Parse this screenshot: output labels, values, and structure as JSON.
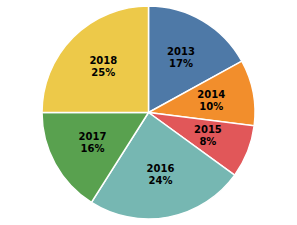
{
  "chart_data": {
    "type": "pie",
    "categories": [
      "2013",
      "2014",
      "2015",
      "2016",
      "2017",
      "2018"
    ],
    "values": [
      17,
      10,
      8,
      24,
      16,
      25
    ],
    "value_labels": [
      "17%",
      "10%",
      "8%",
      "24%",
      "16%",
      "25%"
    ],
    "data_labels": true
  }
}
